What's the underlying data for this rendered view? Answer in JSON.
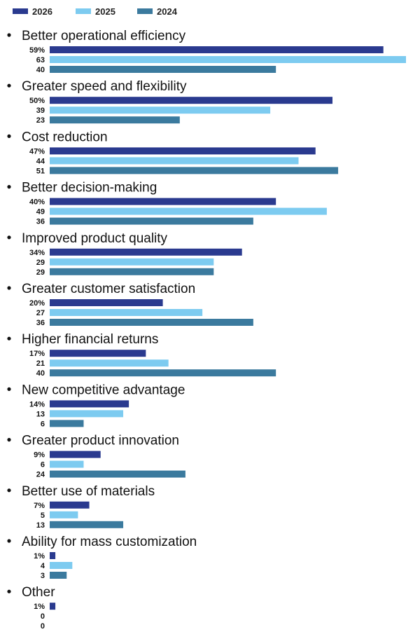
{
  "chart_data": {
    "type": "bar",
    "orientation": "horizontal",
    "legend_position": "top-left",
    "grid": false,
    "xlim": [
      0,
      63
    ],
    "categories": [
      "Better operational efficiency",
      "Greater speed and flexibility",
      "Cost reduction",
      "Better decision-making",
      "Improved product quality",
      "Greater customer satisfaction",
      "Higher financial returns",
      "New competitive advantage",
      "Greater product innovation",
      "Better use of materials",
      "Ability for mass customization",
      "Other"
    ],
    "series": [
      {
        "name": "2026",
        "color": "#2a3a8f",
        "values": [
          59,
          50,
          47,
          40,
          34,
          20,
          17,
          14,
          9,
          7,
          1,
          1
        ],
        "labels": [
          "59%",
          "50%",
          "47%",
          "40%",
          "34%",
          "20%",
          "17%",
          "14%",
          "9%",
          "7%",
          "1%",
          "1%"
        ]
      },
      {
        "name": "2025",
        "color": "#7dcbf0",
        "values": [
          63,
          39,
          44,
          49,
          29,
          27,
          21,
          13,
          6,
          5,
          4,
          0
        ],
        "labels": [
          "63",
          "39",
          "44",
          "49",
          "29",
          "27",
          "21",
          "13",
          "6",
          "5",
          "4",
          "0"
        ]
      },
      {
        "name": "2024",
        "color": "#3b7a9e",
        "values": [
          40,
          23,
          51,
          36,
          29,
          36,
          40,
          6,
          24,
          13,
          3,
          0
        ],
        "labels": [
          "40",
          "23",
          "51",
          "36",
          "29",
          "36",
          "40",
          "6",
          "24",
          "13",
          "3",
          "0"
        ]
      }
    ]
  }
}
